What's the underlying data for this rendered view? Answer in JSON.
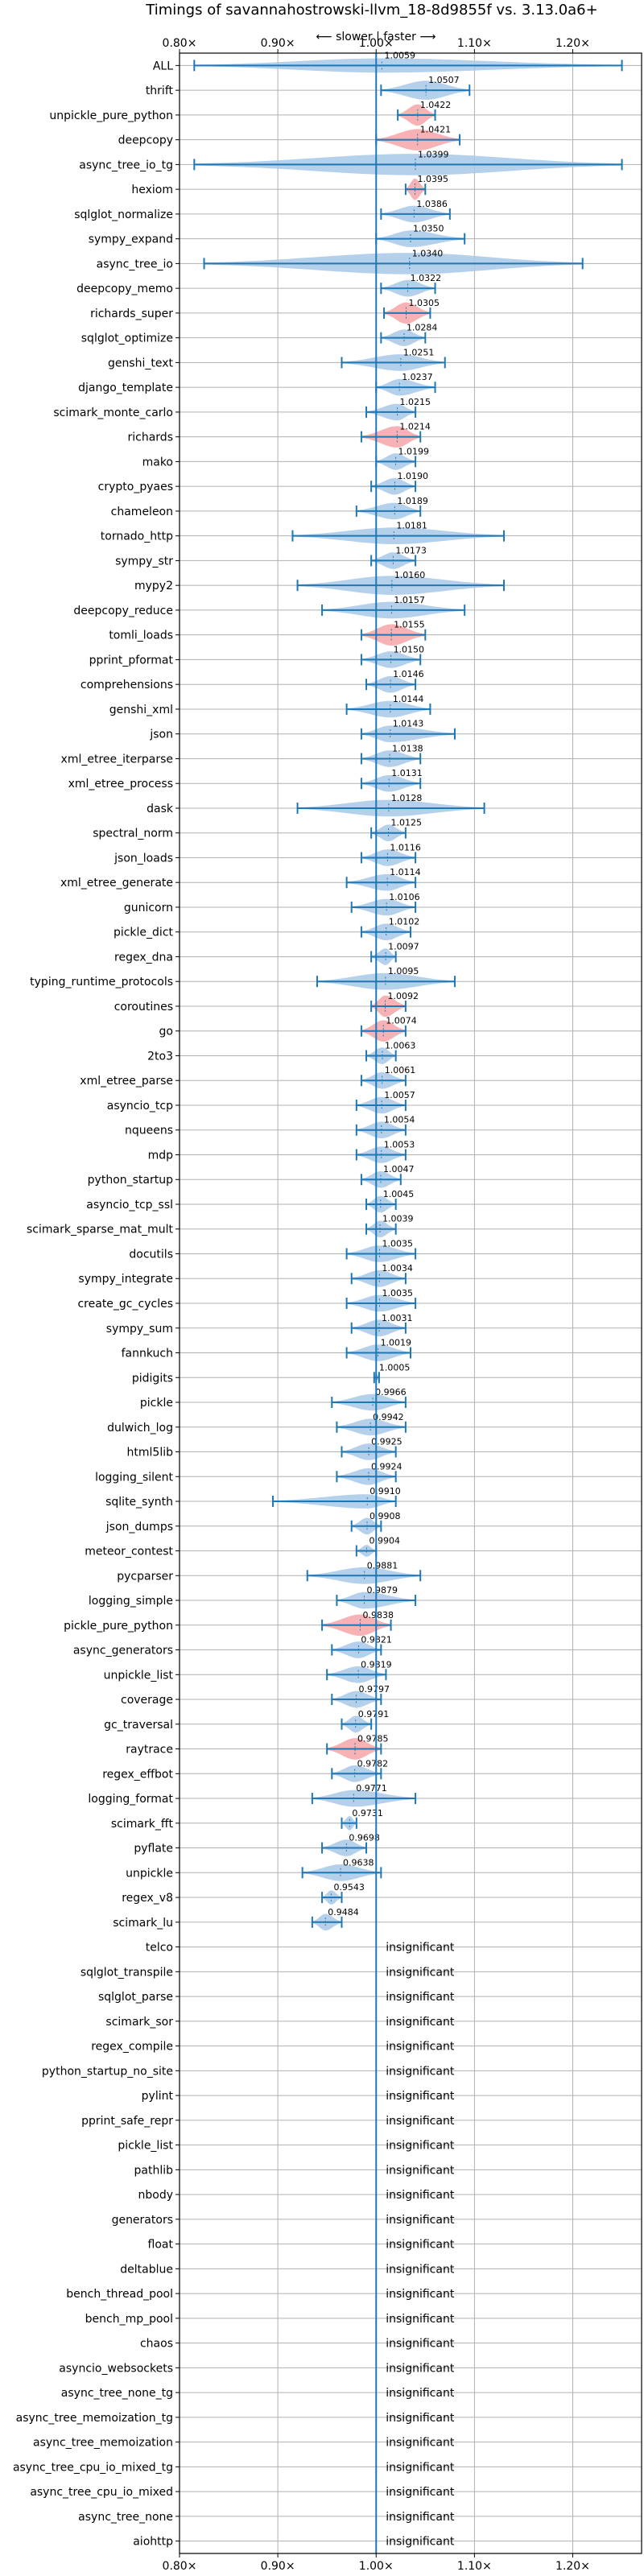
{
  "chart_data": {
    "type": "violin",
    "title": "Timings of savannahostrowski-llvm_18-8d9855f vs. 3.13.0a6+",
    "direction_annotation": "⟵ slower | faster ⟶",
    "xlim": [
      0.8,
      1.27
    ],
    "x_ticks": [
      {
        "value": 0.8,
        "label": "0.80×"
      },
      {
        "value": 0.9,
        "label": "0.90×"
      },
      {
        "value": 1.0,
        "label": "1.00×"
      },
      {
        "value": 1.1,
        "label": "1.10×"
      },
      {
        "value": 1.2,
        "label": "1.20×"
      }
    ],
    "reference_line": 1.0,
    "grid": true,
    "colors": {
      "normal": "#a8c8e8",
      "highlight": "#f4a4a8",
      "line": "#1f77b4",
      "grid": "#b0b0b0"
    },
    "insignificant_label": "insignificant",
    "benchmarks": [
      {
        "name": "ALL",
        "value": 1.0059,
        "label": "1.0059",
        "lo": 0.815,
        "hi": 1.25,
        "w": 0.6,
        "highlight": false
      },
      {
        "name": "thrift",
        "value": 1.0507,
        "label": "1.0507",
        "lo": 1.005,
        "hi": 1.095,
        "w": 0.8,
        "highlight": false
      },
      {
        "name": "unpickle_pure_python",
        "value": 1.0422,
        "label": "1.0422",
        "lo": 1.022,
        "hi": 1.06,
        "w": 0.9,
        "highlight": true
      },
      {
        "name": "deepcopy",
        "value": 1.0421,
        "label": "1.0421",
        "lo": 1.0,
        "hi": 1.085,
        "w": 0.9,
        "highlight": true
      },
      {
        "name": "async_tree_io_tg",
        "value": 1.0399,
        "label": "1.0399",
        "lo": 0.815,
        "hi": 1.25,
        "w": 0.9,
        "highlight": false
      },
      {
        "name": "hexiom",
        "value": 1.0395,
        "label": "1.0395",
        "lo": 1.03,
        "hi": 1.05,
        "w": 0.9,
        "highlight": true
      },
      {
        "name": "sqlglot_normalize",
        "value": 1.0386,
        "label": "1.0386",
        "lo": 1.005,
        "hi": 1.075,
        "w": 0.7,
        "highlight": false
      },
      {
        "name": "sympy_expand",
        "value": 1.035,
        "label": "1.0350",
        "lo": 1.0,
        "hi": 1.09,
        "w": 0.7,
        "highlight": false
      },
      {
        "name": "async_tree_io",
        "value": 1.034,
        "label": "1.0340",
        "lo": 0.825,
        "hi": 1.21,
        "w": 0.9,
        "highlight": false
      },
      {
        "name": "deepcopy_memo",
        "value": 1.0322,
        "label": "1.0322",
        "lo": 1.005,
        "hi": 1.06,
        "w": 0.7,
        "highlight": false
      },
      {
        "name": "richards_super",
        "value": 1.0305,
        "label": "1.0305",
        "lo": 1.008,
        "hi": 1.055,
        "w": 0.9,
        "highlight": true
      },
      {
        "name": "sqlglot_optimize",
        "value": 1.0284,
        "label": "1.0284",
        "lo": 1.005,
        "hi": 1.05,
        "w": 0.7,
        "highlight": false
      },
      {
        "name": "genshi_text",
        "value": 1.0251,
        "label": "1.0251",
        "lo": 0.965,
        "hi": 1.07,
        "w": 0.7,
        "highlight": false
      },
      {
        "name": "django_template",
        "value": 1.0237,
        "label": "1.0237",
        "lo": 1.0,
        "hi": 1.06,
        "w": 0.7,
        "highlight": false
      },
      {
        "name": "scimark_monte_carlo",
        "value": 1.0215,
        "label": "1.0215",
        "lo": 0.99,
        "hi": 1.04,
        "w": 0.7,
        "highlight": false
      },
      {
        "name": "richards",
        "value": 1.0214,
        "label": "1.0214",
        "lo": 0.985,
        "hi": 1.045,
        "w": 0.9,
        "highlight": true
      },
      {
        "name": "mako",
        "value": 1.0199,
        "label": "1.0199",
        "lo": 1.0,
        "hi": 1.04,
        "w": 0.7,
        "highlight": false
      },
      {
        "name": "crypto_pyaes",
        "value": 1.019,
        "label": "1.0190",
        "lo": 0.995,
        "hi": 1.04,
        "w": 0.7,
        "highlight": false
      },
      {
        "name": "chameleon",
        "value": 1.0189,
        "label": "1.0189",
        "lo": 0.98,
        "hi": 1.045,
        "w": 0.7,
        "highlight": false
      },
      {
        "name": "tornado_http",
        "value": 1.0181,
        "label": "1.0181",
        "lo": 0.915,
        "hi": 1.13,
        "w": 0.7,
        "highlight": false
      },
      {
        "name": "sympy_str",
        "value": 1.0173,
        "label": "1.0173",
        "lo": 0.995,
        "hi": 1.04,
        "w": 0.7,
        "highlight": false
      },
      {
        "name": "mypy2",
        "value": 1.016,
        "label": "1.0160",
        "lo": 0.92,
        "hi": 1.13,
        "w": 0.8,
        "highlight": false
      },
      {
        "name": "deepcopy_reduce",
        "value": 1.0157,
        "label": "1.0157",
        "lo": 0.945,
        "hi": 1.09,
        "w": 0.7,
        "highlight": false
      },
      {
        "name": "tomli_loads",
        "value": 1.0155,
        "label": "1.0155",
        "lo": 0.985,
        "hi": 1.05,
        "w": 0.9,
        "highlight": true
      },
      {
        "name": "pprint_pformat",
        "value": 1.015,
        "label": "1.0150",
        "lo": 0.985,
        "hi": 1.045,
        "w": 0.7,
        "highlight": false
      },
      {
        "name": "comprehensions",
        "value": 1.0146,
        "label": "1.0146",
        "lo": 0.99,
        "hi": 1.04,
        "w": 0.7,
        "highlight": false
      },
      {
        "name": "genshi_xml",
        "value": 1.0144,
        "label": "1.0144",
        "lo": 0.97,
        "hi": 1.055,
        "w": 0.7,
        "highlight": false
      },
      {
        "name": "json",
        "value": 1.0143,
        "label": "1.0143",
        "lo": 0.985,
        "hi": 1.08,
        "w": 0.7,
        "highlight": false
      },
      {
        "name": "xml_etree_iterparse",
        "value": 1.0138,
        "label": "1.0138",
        "lo": 0.985,
        "hi": 1.045,
        "w": 0.7,
        "highlight": false
      },
      {
        "name": "xml_etree_process",
        "value": 1.0131,
        "label": "1.0131",
        "lo": 0.985,
        "hi": 1.045,
        "w": 0.7,
        "highlight": false
      },
      {
        "name": "dask",
        "value": 1.0128,
        "label": "1.0128",
        "lo": 0.92,
        "hi": 1.11,
        "w": 0.7,
        "highlight": false
      },
      {
        "name": "spectral_norm",
        "value": 1.0125,
        "label": "1.0125",
        "lo": 0.995,
        "hi": 1.03,
        "w": 0.7,
        "highlight": false
      },
      {
        "name": "json_loads",
        "value": 1.0116,
        "label": "1.0116",
        "lo": 0.985,
        "hi": 1.04,
        "w": 0.7,
        "highlight": false
      },
      {
        "name": "xml_etree_generate",
        "value": 1.0114,
        "label": "1.0114",
        "lo": 0.97,
        "hi": 1.04,
        "w": 0.7,
        "highlight": false
      },
      {
        "name": "gunicorn",
        "value": 1.0106,
        "label": "1.0106",
        "lo": 0.975,
        "hi": 1.04,
        "w": 0.7,
        "highlight": false
      },
      {
        "name": "pickle_dict",
        "value": 1.0102,
        "label": "1.0102",
        "lo": 0.985,
        "hi": 1.035,
        "w": 0.7,
        "highlight": false
      },
      {
        "name": "regex_dna",
        "value": 1.0097,
        "label": "1.0097",
        "lo": 0.995,
        "hi": 1.02,
        "w": 0.7,
        "highlight": false
      },
      {
        "name": "typing_runtime_protocols",
        "value": 1.0095,
        "label": "1.0095",
        "lo": 0.94,
        "hi": 1.08,
        "w": 0.7,
        "highlight": false
      },
      {
        "name": "coroutines",
        "value": 1.0092,
        "label": "1.0092",
        "lo": 0.995,
        "hi": 1.03,
        "w": 0.9,
        "highlight": true
      },
      {
        "name": "go",
        "value": 1.0074,
        "label": "1.0074",
        "lo": 0.985,
        "hi": 1.03,
        "w": 0.9,
        "highlight": true
      },
      {
        "name": "2to3",
        "value": 1.0063,
        "label": "1.0063",
        "lo": 0.99,
        "hi": 1.02,
        "w": 0.7,
        "highlight": false
      },
      {
        "name": "xml_etree_parse",
        "value": 1.0061,
        "label": "1.0061",
        "lo": 0.985,
        "hi": 1.03,
        "w": 0.7,
        "highlight": false
      },
      {
        "name": "asyncio_tcp",
        "value": 1.0057,
        "label": "1.0057",
        "lo": 0.98,
        "hi": 1.03,
        "w": 0.7,
        "highlight": false
      },
      {
        "name": "nqueens",
        "value": 1.0054,
        "label": "1.0054",
        "lo": 0.98,
        "hi": 1.03,
        "w": 0.7,
        "highlight": false
      },
      {
        "name": "mdp",
        "value": 1.0053,
        "label": "1.0053",
        "lo": 0.98,
        "hi": 1.03,
        "w": 0.7,
        "highlight": false
      },
      {
        "name": "python_startup",
        "value": 1.0047,
        "label": "1.0047",
        "lo": 0.985,
        "hi": 1.025,
        "w": 0.7,
        "highlight": false
      },
      {
        "name": "asyncio_tcp_ssl",
        "value": 1.0045,
        "label": "1.0045",
        "lo": 0.99,
        "hi": 1.02,
        "w": 0.7,
        "highlight": false
      },
      {
        "name": "scimark_sparse_mat_mult",
        "value": 1.0039,
        "label": "1.0039",
        "lo": 0.99,
        "hi": 1.02,
        "w": 0.7,
        "highlight": false
      },
      {
        "name": "docutils",
        "value": 1.0035,
        "label": "1.0035",
        "lo": 0.97,
        "hi": 1.04,
        "w": 0.7,
        "highlight": false
      },
      {
        "name": "sympy_integrate",
        "value": 1.0034,
        "label": "1.0034",
        "lo": 0.975,
        "hi": 1.03,
        "w": 0.7,
        "highlight": false
      },
      {
        "name": "create_gc_cycles",
        "value": 1.0035,
        "label": "1.0035",
        "lo": 0.97,
        "hi": 1.04,
        "w": 0.7,
        "highlight": false
      },
      {
        "name": "sympy_sum",
        "value": 1.0031,
        "label": "1.0031",
        "lo": 0.975,
        "hi": 1.03,
        "w": 0.7,
        "highlight": false
      },
      {
        "name": "fannkuch",
        "value": 1.0019,
        "label": "1.0019",
        "lo": 0.97,
        "hi": 1.035,
        "w": 0.7,
        "highlight": false
      },
      {
        "name": "pidigits",
        "value": 1.0005,
        "label": "1.0005",
        "lo": 0.998,
        "hi": 1.003,
        "w": 0.3,
        "highlight": false
      },
      {
        "name": "pickle",
        "value": 0.9966,
        "label": "0.9966",
        "lo": 0.955,
        "hi": 1.03,
        "w": 0.7,
        "highlight": false
      },
      {
        "name": "dulwich_log",
        "value": 0.9942,
        "label": "0.9942",
        "lo": 0.96,
        "hi": 1.03,
        "w": 0.7,
        "highlight": false
      },
      {
        "name": "html5lib",
        "value": 0.9925,
        "label": "0.9925",
        "lo": 0.965,
        "hi": 1.02,
        "w": 0.7,
        "highlight": false
      },
      {
        "name": "logging_silent",
        "value": 0.9924,
        "label": "0.9924",
        "lo": 0.96,
        "hi": 1.02,
        "w": 0.7,
        "highlight": false
      },
      {
        "name": "sqlite_synth",
        "value": 0.991,
        "label": "0.9910",
        "lo": 0.895,
        "hi": 1.02,
        "w": 0.6,
        "highlight": false
      },
      {
        "name": "json_dumps",
        "value": 0.9908,
        "label": "0.9908",
        "lo": 0.975,
        "hi": 1.005,
        "w": 0.7,
        "highlight": false
      },
      {
        "name": "meteor_contest",
        "value": 0.9904,
        "label": "0.9904",
        "lo": 0.98,
        "hi": 1.0,
        "w": 0.5,
        "highlight": false
      },
      {
        "name": "pycparser",
        "value": 0.9881,
        "label": "0.9881",
        "lo": 0.93,
        "hi": 1.045,
        "w": 0.7,
        "highlight": false
      },
      {
        "name": "logging_simple",
        "value": 0.9879,
        "label": "0.9879",
        "lo": 0.96,
        "hi": 1.04,
        "w": 0.7,
        "highlight": false
      },
      {
        "name": "pickle_pure_python",
        "value": 0.9838,
        "label": "0.9838",
        "lo": 0.945,
        "hi": 1.015,
        "w": 0.9,
        "highlight": true
      },
      {
        "name": "async_generators",
        "value": 0.9821,
        "label": "0.9821",
        "lo": 0.955,
        "hi": 1.005,
        "w": 0.7,
        "highlight": false
      },
      {
        "name": "unpickle_list",
        "value": 0.9819,
        "label": "0.9819",
        "lo": 0.95,
        "hi": 1.01,
        "w": 0.7,
        "highlight": false
      },
      {
        "name": "coverage",
        "value": 0.9797,
        "label": "0.9797",
        "lo": 0.955,
        "hi": 1.005,
        "w": 0.7,
        "highlight": false
      },
      {
        "name": "gc_traversal",
        "value": 0.9791,
        "label": "0.9791",
        "lo": 0.965,
        "hi": 0.995,
        "w": 0.7,
        "highlight": false
      },
      {
        "name": "raytrace",
        "value": 0.9785,
        "label": "0.9785",
        "lo": 0.95,
        "hi": 1.005,
        "w": 0.9,
        "highlight": true
      },
      {
        "name": "regex_effbot",
        "value": 0.9782,
        "label": "0.9782",
        "lo": 0.955,
        "hi": 1.005,
        "w": 0.7,
        "highlight": false
      },
      {
        "name": "logging_format",
        "value": 0.9771,
        "label": "0.9771",
        "lo": 0.935,
        "hi": 1.04,
        "w": 0.7,
        "highlight": false
      },
      {
        "name": "scimark_fft",
        "value": 0.9731,
        "label": "0.9731",
        "lo": 0.965,
        "hi": 0.98,
        "w": 0.6,
        "highlight": false
      },
      {
        "name": "pyflate",
        "value": 0.9698,
        "label": "0.9698",
        "lo": 0.945,
        "hi": 0.99,
        "w": 0.7,
        "highlight": false
      },
      {
        "name": "unpickle",
        "value": 0.9638,
        "label": "0.9638",
        "lo": 0.925,
        "hi": 1.005,
        "w": 0.7,
        "highlight": false
      },
      {
        "name": "regex_v8",
        "value": 0.9543,
        "label": "0.9543",
        "lo": 0.945,
        "hi": 0.965,
        "w": 0.6,
        "highlight": false
      },
      {
        "name": "scimark_lu",
        "value": 0.9484,
        "label": "0.9484",
        "lo": 0.935,
        "hi": 0.965,
        "w": 0.7,
        "highlight": false
      },
      {
        "name": "telco",
        "insignificant": true
      },
      {
        "name": "sqlglot_transpile",
        "insignificant": true
      },
      {
        "name": "sqlglot_parse",
        "insignificant": true
      },
      {
        "name": "scimark_sor",
        "insignificant": true
      },
      {
        "name": "regex_compile",
        "insignificant": true
      },
      {
        "name": "python_startup_no_site",
        "insignificant": true
      },
      {
        "name": "pylint",
        "insignificant": true
      },
      {
        "name": "pprint_safe_repr",
        "insignificant": true
      },
      {
        "name": "pickle_list",
        "insignificant": true
      },
      {
        "name": "pathlib",
        "insignificant": true
      },
      {
        "name": "nbody",
        "insignificant": true
      },
      {
        "name": "generators",
        "insignificant": true
      },
      {
        "name": "float",
        "insignificant": true
      },
      {
        "name": "deltablue",
        "insignificant": true
      },
      {
        "name": "bench_thread_pool",
        "insignificant": true
      },
      {
        "name": "bench_mp_pool",
        "insignificant": true
      },
      {
        "name": "chaos",
        "insignificant": true
      },
      {
        "name": "asyncio_websockets",
        "insignificant": true
      },
      {
        "name": "async_tree_none_tg",
        "insignificant": true
      },
      {
        "name": "async_tree_memoization_tg",
        "insignificant": true
      },
      {
        "name": "async_tree_memoization",
        "insignificant": true
      },
      {
        "name": "async_tree_cpu_io_mixed_tg",
        "insignificant": true
      },
      {
        "name": "async_tree_cpu_io_mixed",
        "insignificant": true
      },
      {
        "name": "async_tree_none",
        "insignificant": true
      },
      {
        "name": "aiohttp",
        "insignificant": true
      }
    ]
  }
}
